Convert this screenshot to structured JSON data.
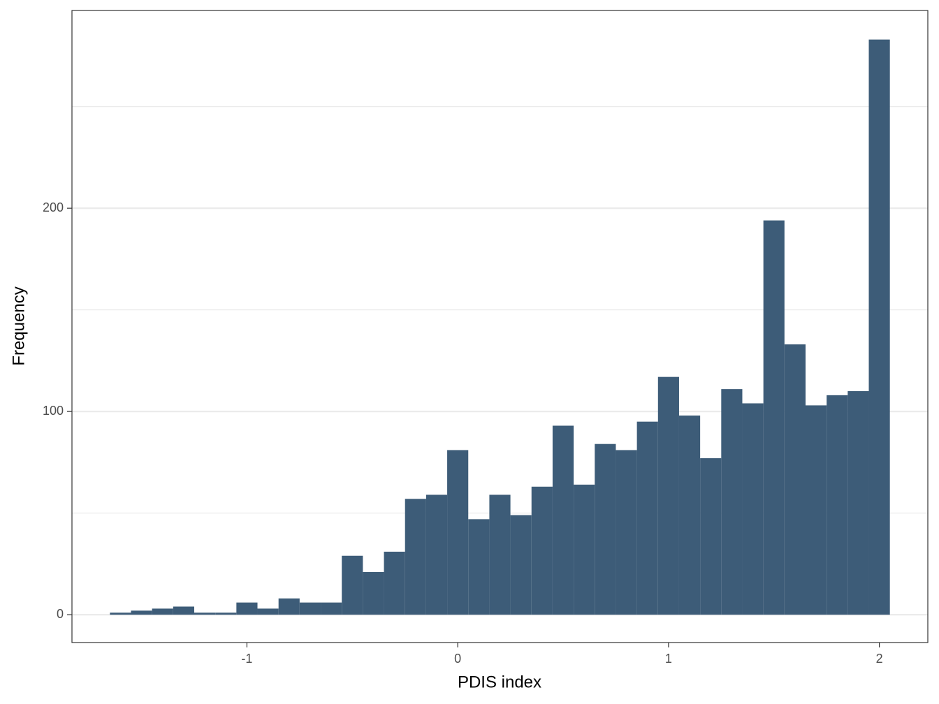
{
  "chart_data": {
    "type": "histogram",
    "xlabel": "PDIS index",
    "ylabel": "Frequency",
    "bins": [
      -1.65,
      -1.55,
      -1.45,
      -1.35,
      -1.25,
      -1.15,
      -1.05,
      -0.95,
      -0.85,
      -0.75,
      -0.65,
      -0.55,
      -0.45,
      -0.35,
      -0.25,
      -0.15,
      -0.05,
      0.05,
      0.15,
      0.25,
      0.35,
      0.45,
      0.55,
      0.65,
      0.75,
      0.85,
      0.95,
      1.05,
      1.15,
      1.25,
      1.35,
      1.45,
      1.55,
      1.65,
      1.75,
      1.85,
      1.95,
      2.05
    ],
    "values": [
      1,
      2,
      3,
      4,
      1,
      1,
      6,
      3,
      8,
      6,
      6,
      29,
      21,
      31,
      57,
      59,
      81,
      47,
      59,
      49,
      63,
      93,
      64,
      84,
      81,
      95,
      117,
      98,
      77,
      111,
      104,
      194,
      133,
      103,
      108,
      110,
      283
    ],
    "color": "#3d5c78",
    "xlim": [
      -1.83,
      2.23
    ],
    "xticks": [
      -1,
      0,
      1,
      2
    ],
    "ylim": [
      -13.7,
      297.3
    ],
    "yticks": [
      0,
      100,
      200
    ],
    "yminorticks": [
      50,
      150,
      250
    ],
    "grid": true
  }
}
